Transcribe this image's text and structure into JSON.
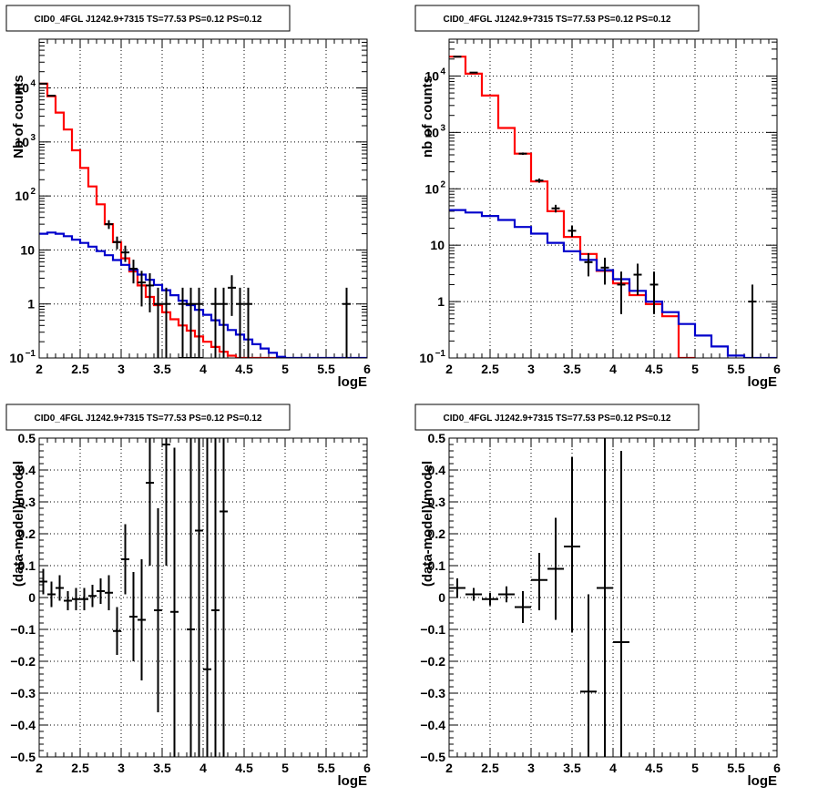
{
  "chart_data": [
    {
      "type": "line",
      "title": "CID0_4FGL J1242.9+7315 TS=77.53 PS=0.12 PS=0.12",
      "xlabel": "logE",
      "ylabel": "Nb of counts",
      "xlim": [
        2,
        6
      ],
      "ylim": [
        0.1,
        80000
      ],
      "yscale": "log",
      "grid": true,
      "xticks": [
        "2",
        "2.5",
        "3",
        "3.5",
        "4",
        "4.5",
        "5",
        "5.5",
        "6"
      ],
      "yticks": [
        {
          "value": 0.1,
          "label": "10",
          "sup": "−1"
        },
        {
          "value": 1,
          "label": "1",
          "sup": ""
        },
        {
          "value": 10,
          "label": "10",
          "sup": ""
        },
        {
          "value": 100,
          "label": "10",
          "sup": "2"
        },
        {
          "value": 1000,
          "label": "10",
          "sup": "3"
        },
        {
          "value": 10000,
          "label": "10",
          "sup": "4"
        }
      ],
      "series": [
        {
          "color": "#ff0000",
          "kind": "hist",
          "edges": [
            2,
            2.1,
            2.2,
            2.3,
            2.4,
            2.5,
            2.6,
            2.7,
            2.8,
            2.9,
            3.0,
            3.1,
            3.2,
            3.3,
            3.4,
            3.5,
            3.6,
            3.7,
            3.8,
            3.9,
            4.0,
            4.1,
            4.2,
            4.3,
            4.4,
            4.5,
            4.6,
            4.7,
            4.8,
            4.9,
            5.0
          ],
          "values": [
            12000,
            7000,
            3500,
            1700,
            700,
            330,
            150,
            70,
            30,
            14,
            7,
            4,
            2.2,
            1.35,
            0.95,
            0.7,
            0.52,
            0.4,
            0.32,
            0.25,
            0.2,
            0.16,
            0.13,
            0.11,
            0.1,
            0.1,
            0.1,
            0.1,
            0.1,
            0.1
          ]
        },
        {
          "color": "#0000cc",
          "kind": "hist",
          "edges": [
            2,
            2.1,
            2.2,
            2.3,
            2.4,
            2.5,
            2.6,
            2.7,
            2.8,
            2.9,
            3.0,
            3.1,
            3.2,
            3.3,
            3.4,
            3.5,
            3.6,
            3.7,
            3.8,
            3.9,
            4.0,
            4.1,
            4.2,
            4.3,
            4.4,
            4.5,
            4.6,
            4.7,
            4.8,
            4.9,
            5.0,
            5.1,
            5.2,
            5.3,
            5.4,
            5.5,
            5.6,
            5.7,
            5.8,
            5.9,
            6.0
          ],
          "values": [
            20,
            21,
            20,
            18,
            15.5,
            13.5,
            11.5,
            9.5,
            8,
            6.5,
            5.3,
            4.3,
            3.5,
            2.8,
            2.25,
            1.8,
            1.45,
            1.15,
            0.95,
            0.78,
            0.63,
            0.5,
            0.41,
            0.33,
            0.27,
            0.22,
            0.18,
            0.15,
            0.125,
            0.105,
            0.1,
            0.1,
            0.1,
            0.1,
            0.1,
            0.1,
            0.1,
            0.1,
            0.1,
            0.1
          ]
        },
        {
          "color": "#000000",
          "kind": "points",
          "points": [
            {
              "x": 2.05,
              "y": 12000,
              "lo": 11800,
              "hi": 12200
            },
            {
              "x": 2.15,
              "y": 7200,
              "lo": 7050,
              "hi": 7350
            },
            {
              "x": 2.85,
              "y": 30,
              "lo": 24.5,
              "hi": 35.5
            },
            {
              "x": 2.95,
              "y": 14,
              "lo": 10.3,
              "hi": 17.7
            },
            {
              "x": 3.05,
              "y": 9,
              "lo": 6,
              "hi": 12
            },
            {
              "x": 3.15,
              "y": 4.5,
              "lo": 2.4,
              "hi": 6.6
            },
            {
              "x": 3.25,
              "y": 2.5,
              "lo": 0.9,
              "hi": 4.1
            },
            {
              "x": 3.35,
              "y": 2.2,
              "lo": 0.7,
              "hi": 3.7
            },
            {
              "x": 3.45,
              "y": 1.0,
              "lo": 0.1,
              "hi": 2.0
            },
            {
              "x": 3.55,
              "y": 1.0,
              "lo": 0.1,
              "hi": 2.0
            },
            {
              "x": 3.75,
              "y": 0.1,
              "lo": 0.1,
              "hi": 0.13
            },
            {
              "x": 3.85,
              "y": 0.1,
              "lo": 0.1,
              "hi": 0.13
            },
            {
              "x": 3.95,
              "y": 0.1,
              "lo": 0.1,
              "hi": 0.13
            }
          ]
        },
        {
          "color": "#000000",
          "kind": "points",
          "points": [
            {
              "x": 3.75,
              "y": 1,
              "lo": 0.1,
              "hi": 2
            },
            {
              "x": 3.85,
              "y": 1,
              "lo": 0.1,
              "hi": 2
            },
            {
              "x": 3.95,
              "y": 1,
              "lo": 0.1,
              "hi": 2
            },
            {
              "x": 4.15,
              "y": 1,
              "lo": 0.1,
              "hi": 2
            },
            {
              "x": 4.25,
              "y": 1,
              "lo": 0.1,
              "hi": 2
            },
            {
              "x": 4.35,
              "y": 2,
              "lo": 0.6,
              "hi": 3.4
            },
            {
              "x": 4.45,
              "y": 1,
              "lo": 0.1,
              "hi": 2
            },
            {
              "x": 4.55,
              "y": 1,
              "lo": 0.1,
              "hi": 2
            },
            {
              "x": 5.75,
              "y": 1,
              "lo": 0.1,
              "hi": 2
            }
          ]
        }
      ]
    },
    {
      "type": "line",
      "title": "CID0_4FGL J1242.9+7315 TS=77.53 PS=0.12 PS=0.12",
      "xlabel": "logE",
      "ylabel": "nb of counts",
      "xlim": [
        2,
        6
      ],
      "ylim": [
        0.1,
        45000
      ],
      "yscale": "log",
      "grid": true,
      "xticks": [
        "2",
        "2.5",
        "3",
        "3.5",
        "4",
        "4.5",
        "5",
        "5.5",
        "6"
      ],
      "yticks": [
        {
          "value": 0.1,
          "label": "10",
          "sup": "−1"
        },
        {
          "value": 1,
          "label": "1",
          "sup": ""
        },
        {
          "value": 10,
          "label": "10",
          "sup": ""
        },
        {
          "value": 100,
          "label": "10",
          "sup": "2"
        },
        {
          "value": 1000,
          "label": "10",
          "sup": "3"
        },
        {
          "value": 10000,
          "label": "10",
          "sup": "4"
        }
      ],
      "series": [
        {
          "color": "#ff0000",
          "kind": "hist",
          "edges": [
            2,
            2.2,
            2.4,
            2.6,
            2.8,
            3.0,
            3.2,
            3.4,
            3.6,
            3.8,
            4.0,
            4.2,
            4.4,
            4.6,
            4.8,
            5.0
          ],
          "values": [
            22000,
            11000,
            4500,
            1200,
            420,
            135,
            40,
            14,
            7,
            3.5,
            2.1,
            1.3,
            0.9,
            0.55,
            0.1
          ]
        },
        {
          "color": "#0000cc",
          "kind": "hist",
          "edges": [
            2,
            2.2,
            2.4,
            2.6,
            2.8,
            3.0,
            3.2,
            3.4,
            3.6,
            3.8,
            4.0,
            4.2,
            4.4,
            4.6,
            4.8,
            5.0,
            5.2,
            5.4,
            5.6,
            5.8,
            6.0
          ],
          "values": [
            42,
            38,
            33,
            28,
            21,
            16,
            11,
            7.8,
            5.5,
            3.6,
            2.5,
            1.55,
            1.0,
            0.65,
            0.4,
            0.25,
            0.16,
            0.11,
            0.1,
            0.1
          ]
        },
        {
          "color": "#000000",
          "kind": "points",
          "points": [
            {
              "x": 2.1,
              "y": 22000,
              "lo": 21800,
              "hi": 22200
            },
            {
              "x": 2.3,
              "y": 11500,
              "lo": 11300,
              "hi": 11700
            },
            {
              "x": 2.9,
              "y": 420,
              "lo": 400,
              "hi": 440
            },
            {
              "x": 3.1,
              "y": 140,
              "lo": 128,
              "hi": 152
            },
            {
              "x": 3.3,
              "y": 45,
              "lo": 38,
              "hi": 52
            },
            {
              "x": 3.5,
              "y": 18,
              "lo": 14,
              "hi": 22
            },
            {
              "x": 3.7,
              "y": 5,
              "lo": 2.8,
              "hi": 7.2
            },
            {
              "x": 3.9,
              "y": 4,
              "lo": 2.0,
              "hi": 6.0
            },
            {
              "x": 4.1,
              "y": 2,
              "lo": 0.6,
              "hi": 3.4
            },
            {
              "x": 4.3,
              "y": 3,
              "lo": 1.3,
              "hi": 4.7
            },
            {
              "x": 4.5,
              "y": 2,
              "lo": 0.6,
              "hi": 3.4
            },
            {
              "x": 5.7,
              "y": 1,
              "lo": 0.1,
              "hi": 2
            }
          ]
        }
      ]
    },
    {
      "type": "scatter",
      "title": "CID0_4FGL J1242.9+7315 TS=77.53 PS=0.12 PS=0.12",
      "xlabel": "logE",
      "ylabel": "(data-model)/model",
      "xlim": [
        2,
        6
      ],
      "ylim": [
        -0.5,
        0.5
      ],
      "yscale": "linear",
      "grid": true,
      "xticks": [
        "2",
        "2.5",
        "3",
        "3.5",
        "4",
        "4.5",
        "5",
        "5.5",
        "6"
      ],
      "yticks": [
        "−0.5",
        "−0.4",
        "−0.3",
        "−0.2",
        "−0.1",
        "0",
        "0.1",
        "0.2",
        "0.3",
        "0.4",
        "0.5"
      ],
      "series": [
        {
          "color": "#000000",
          "kind": "points",
          "halfwidth": 0.05,
          "points": [
            {
              "x": 2.05,
              "y": 0.05,
              "lo": 0.01,
              "hi": 0.09
            },
            {
              "x": 2.15,
              "y": 0.01,
              "lo": -0.03,
              "hi": 0.05
            },
            {
              "x": 2.25,
              "y": 0.03,
              "lo": -0.01,
              "hi": 0.07
            },
            {
              "x": 2.35,
              "y": -0.01,
              "lo": -0.04,
              "hi": 0.02
            },
            {
              "x": 2.45,
              "y": -0.005,
              "lo": -0.04,
              "hi": 0.03
            },
            {
              "x": 2.55,
              "y": -0.005,
              "lo": -0.04,
              "hi": 0.03
            },
            {
              "x": 2.65,
              "y": 0.005,
              "lo": -0.03,
              "hi": 0.04
            },
            {
              "x": 2.75,
              "y": 0.02,
              "lo": -0.02,
              "hi": 0.06
            },
            {
              "x": 2.85,
              "y": 0.015,
              "lo": -0.04,
              "hi": 0.07
            },
            {
              "x": 2.95,
              "y": -0.105,
              "lo": -0.18,
              "hi": -0.03
            },
            {
              "x": 3.05,
              "y": 0.12,
              "lo": 0.01,
              "hi": 0.23
            },
            {
              "x": 3.15,
              "y": -0.06,
              "lo": -0.2,
              "hi": 0.08
            },
            {
              "x": 3.25,
              "y": -0.07,
              "lo": -0.26,
              "hi": 0.12
            },
            {
              "x": 3.35,
              "y": 0.36,
              "lo": 0.1,
              "hi": 0.5
            },
            {
              "x": 3.45,
              "y": -0.04,
              "lo": -0.36,
              "hi": 0.28
            },
            {
              "x": 3.55,
              "y": 0.48,
              "lo": 0.1,
              "hi": 0.5
            },
            {
              "x": 3.65,
              "y": -0.045,
              "lo": -0.5,
              "hi": 0.47
            },
            {
              "x": 3.85,
              "y": -0.1,
              "lo": -0.5,
              "hi": 0.5
            },
            {
              "x": 3.95,
              "y": 0.21,
              "lo": -0.5,
              "hi": 0.5
            },
            {
              "x": 4.05,
              "y": -0.225,
              "lo": -0.5,
              "hi": 0.5
            },
            {
              "x": 4.15,
              "y": -0.04,
              "lo": -0.5,
              "hi": 0.5
            },
            {
              "x": 4.25,
              "y": 0.27,
              "lo": -0.5,
              "hi": 0.5
            }
          ]
        }
      ]
    },
    {
      "type": "scatter",
      "title": "CID0_4FGL J1242.9+7315 TS=77.53 PS=0.12 PS=0.12",
      "xlabel": "logE",
      "ylabel": "(data-model)/model",
      "xlim": [
        2,
        6
      ],
      "ylim": [
        -0.5,
        0.5
      ],
      "yscale": "linear",
      "grid": true,
      "xticks": [
        "2",
        "2.5",
        "3",
        "3.5",
        "4",
        "4.5",
        "5",
        "5.5",
        "6"
      ],
      "yticks": [
        "−0.5",
        "−0.4",
        "−0.3",
        "−0.2",
        "−0.1",
        "0",
        "0.1",
        "0.2",
        "0.3",
        "0.4",
        "0.5"
      ],
      "series": [
        {
          "color": "#000000",
          "kind": "points",
          "halfwidth": 0.1,
          "points": [
            {
              "x": 2.1,
              "y": 0.03,
              "lo": 0.0,
              "hi": 0.06
            },
            {
              "x": 2.3,
              "y": 0.01,
              "lo": -0.01,
              "hi": 0.03
            },
            {
              "x": 2.5,
              "y": -0.005,
              "lo": -0.025,
              "hi": 0.015
            },
            {
              "x": 2.7,
              "y": 0.01,
              "lo": -0.015,
              "hi": 0.035
            },
            {
              "x": 2.9,
              "y": -0.03,
              "lo": -0.08,
              "hi": 0.02
            },
            {
              "x": 3.1,
              "y": 0.055,
              "lo": -0.04,
              "hi": 0.14
            },
            {
              "x": 3.3,
              "y": 0.09,
              "lo": -0.07,
              "hi": 0.25
            },
            {
              "x": 3.5,
              "y": 0.16,
              "lo": -0.11,
              "hi": 0.44
            },
            {
              "x": 3.7,
              "y": -0.295,
              "lo": -0.5,
              "hi": 0.01
            },
            {
              "x": 3.9,
              "y": 0.03,
              "lo": -0.5,
              "hi": 0.5
            },
            {
              "x": 4.1,
              "y": -0.14,
              "lo": -0.5,
              "hi": 0.46
            }
          ]
        }
      ]
    }
  ]
}
